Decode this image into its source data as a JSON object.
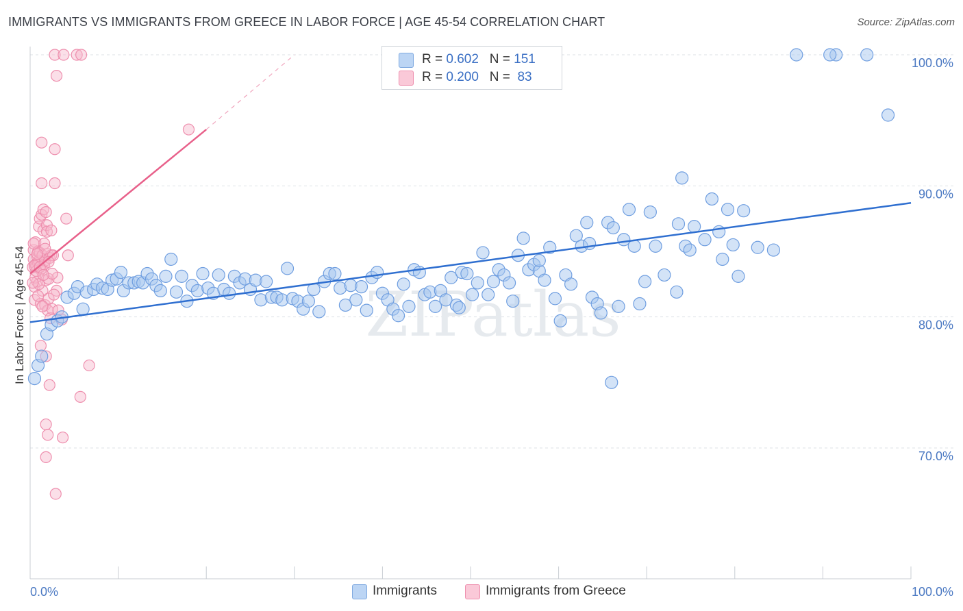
{
  "title": "IMMIGRANTS VS IMMIGRANTS FROM GREECE IN LABOR FORCE | AGE 45-54 CORRELATION CHART",
  "source": "Source: ZipAtlas.com",
  "watermark": "ZIPatlas",
  "legend": {
    "r_label": "R =",
    "n_label": "N =",
    "rows": [
      {
        "name": "Immigrants",
        "r": "0.602",
        "n": "151",
        "color": "#a8c8f0",
        "stroke": "#7fa9e0"
      },
      {
        "name": "Immigrants from Greece",
        "r": "0.200",
        "n": "83",
        "color": "#f7b8cc",
        "stroke": "#ee8fae"
      }
    ]
  },
  "bottom_legend": [
    "Immigrants",
    "Immigrants from Greece"
  ],
  "colors": {
    "blue_fill": "#a8c8f0",
    "blue_stroke": "#6f9ee0",
    "blue_line": "#2f6fd0",
    "pink_fill": "#f7b8cc",
    "pink_stroke": "#ee8fae",
    "pink_line": "#e8608a",
    "grid": "#dde1e6",
    "axis_text": "#4a78c2"
  },
  "chart_data": {
    "type": "scatter",
    "title": "IMMIGRANTS VS IMMIGRANTS FROM GREECE IN LABOR FORCE | AGE 45-54 CORRELATION CHART",
    "xlabel": "",
    "ylabel": "In Labor Force | Age 45-54",
    "xlim": [
      0,
      100
    ],
    "ylim": [
      60.5,
      101.5
    ],
    "x_tick_labels": [
      "0.0%",
      "100.0%"
    ],
    "y_ticks": [
      70,
      80,
      90,
      100
    ],
    "y_tick_labels": [
      "70.0%",
      "80.0%",
      "90.0%",
      "100.0%"
    ],
    "grid": true,
    "series": [
      {
        "name": "Immigrants",
        "trend": {
          "x": [
            0,
            100
          ],
          "y": [
            79.6,
            88.7
          ]
        },
        "points": [
          [
            0.5,
            75.3
          ],
          [
            0.9,
            76.3
          ],
          [
            1.3,
            77.0
          ],
          [
            1.9,
            78.7
          ],
          [
            2.4,
            79.4
          ],
          [
            3.1,
            79.7
          ],
          [
            3.6,
            80.0
          ],
          [
            4.2,
            81.5
          ],
          [
            5.0,
            81.8
          ],
          [
            5.4,
            82.3
          ],
          [
            6.0,
            80.6
          ],
          [
            6.4,
            81.9
          ],
          [
            7.2,
            82.1
          ],
          [
            7.6,
            82.5
          ],
          [
            8.2,
            82.2
          ],
          [
            8.8,
            82.1
          ],
          [
            9.3,
            82.8
          ],
          [
            9.8,
            82.9
          ],
          [
            10.3,
            83.4
          ],
          [
            10.6,
            82.0
          ],
          [
            11.2,
            82.6
          ],
          [
            11.8,
            82.6
          ],
          [
            12.3,
            82.7
          ],
          [
            12.8,
            82.6
          ],
          [
            13.3,
            83.3
          ],
          [
            13.8,
            82.9
          ],
          [
            14.3,
            82.4
          ],
          [
            14.8,
            82.0
          ],
          [
            15.4,
            83.1
          ],
          [
            16.0,
            84.4
          ],
          [
            16.6,
            81.9
          ],
          [
            17.2,
            83.1
          ],
          [
            17.8,
            81.2
          ],
          [
            18.4,
            82.4
          ],
          [
            19.0,
            82.0
          ],
          [
            19.6,
            83.3
          ],
          [
            20.2,
            82.2
          ],
          [
            20.8,
            81.8
          ],
          [
            21.4,
            83.2
          ],
          [
            22.0,
            82.1
          ],
          [
            22.6,
            81.8
          ],
          [
            23.2,
            83.1
          ],
          [
            23.8,
            82.6
          ],
          [
            24.4,
            82.9
          ],
          [
            25.0,
            82.1
          ],
          [
            25.6,
            82.8
          ],
          [
            26.2,
            81.3
          ],
          [
            26.8,
            82.7
          ],
          [
            27.4,
            81.5
          ],
          [
            28.0,
            81.5
          ],
          [
            28.6,
            81.3
          ],
          [
            29.2,
            83.7
          ],
          [
            29.8,
            81.4
          ],
          [
            30.4,
            81.2
          ],
          [
            31.0,
            80.6
          ],
          [
            31.6,
            81.2
          ],
          [
            32.2,
            82.1
          ],
          [
            32.8,
            80.4
          ],
          [
            33.4,
            82.7
          ],
          [
            34.0,
            83.3
          ],
          [
            34.6,
            83.3
          ],
          [
            35.2,
            82.2
          ],
          [
            35.8,
            80.9
          ],
          [
            36.4,
            82.4
          ],
          [
            37.0,
            81.3
          ],
          [
            37.6,
            82.3
          ],
          [
            38.2,
            80.5
          ],
          [
            38.8,
            83.0
          ],
          [
            39.4,
            83.4
          ],
          [
            40.0,
            81.8
          ],
          [
            40.6,
            81.3
          ],
          [
            41.2,
            80.6
          ],
          [
            41.8,
            80.1
          ],
          [
            42.4,
            82.5
          ],
          [
            43.0,
            80.8
          ],
          [
            43.6,
            83.6
          ],
          [
            44.2,
            83.4
          ],
          [
            44.8,
            81.7
          ],
          [
            45.4,
            81.9
          ],
          [
            46.0,
            80.8
          ],
          [
            46.6,
            82.0
          ],
          [
            47.2,
            81.3
          ],
          [
            47.8,
            83.0
          ],
          [
            48.4,
            80.9
          ],
          [
            49.0,
            83.4
          ],
          [
            49.6,
            83.3
          ],
          [
            50.2,
            81.7
          ],
          [
            50.8,
            82.6
          ],
          [
            51.4,
            84.9
          ],
          [
            52.0,
            81.7
          ],
          [
            52.6,
            82.7
          ],
          [
            53.2,
            83.6
          ],
          [
            53.8,
            83.2
          ],
          [
            54.4,
            82.6
          ],
          [
            54.8,
            81.2
          ],
          [
            55.4,
            84.7
          ],
          [
            56.0,
            86.0
          ],
          [
            56.6,
            83.6
          ],
          [
            57.2,
            84.0
          ],
          [
            57.8,
            83.5
          ],
          [
            58.4,
            82.8
          ],
          [
            59.0,
            85.3
          ],
          [
            59.6,
            81.4
          ],
          [
            60.2,
            79.7
          ],
          [
            60.8,
            83.2
          ],
          [
            61.4,
            82.5
          ],
          [
            62.0,
            86.2
          ],
          [
            62.6,
            85.4
          ],
          [
            63.2,
            87.2
          ],
          [
            63.8,
            81.5
          ],
          [
            64.4,
            81.0
          ],
          [
            64.8,
            80.3
          ],
          [
            65.6,
            87.2
          ],
          [
            66.2,
            86.8
          ],
          [
            66.8,
            80.8
          ],
          [
            67.4,
            85.9
          ],
          [
            68.0,
            88.2
          ],
          [
            68.6,
            85.4
          ],
          [
            69.2,
            81.0
          ],
          [
            69.8,
            82.7
          ],
          [
            70.4,
            88.0
          ],
          [
            71.0,
            85.4
          ],
          [
            72.0,
            83.2
          ],
          [
            73.4,
            81.9
          ],
          [
            74.0,
            90.6
          ],
          [
            74.4,
            85.4
          ],
          [
            74.9,
            85.1
          ],
          [
            75.4,
            86.9
          ],
          [
            76.6,
            85.9
          ],
          [
            77.4,
            89.0
          ],
          [
            78.2,
            86.5
          ],
          [
            78.6,
            84.4
          ],
          [
            79.2,
            88.2
          ],
          [
            79.8,
            85.5
          ],
          [
            80.4,
            83.1
          ],
          [
            81.0,
            88.1
          ],
          [
            82.6,
            85.3
          ],
          [
            87.0,
            100.0
          ],
          [
            91.5,
            100.0
          ],
          [
            95.0,
            100.0
          ],
          [
            63.5,
            85.6
          ],
          [
            73.6,
            87.1
          ],
          [
            84.4,
            85.1
          ],
          [
            90.8,
            100.0
          ],
          [
            66.0,
            75.0
          ],
          [
            97.4,
            95.4
          ],
          [
            48.7,
            80.7
          ],
          [
            57.8,
            84.3
          ]
        ]
      },
      {
        "name": "Immigrants from Greece",
        "trend": {
          "x": [
            0,
            20
          ],
          "y": [
            83.3,
            94.3
          ]
        },
        "trend_dashed": {
          "x": [
            20,
            30
          ],
          "y": [
            94.3,
            100.0
          ]
        },
        "points": [
          [
            0.3,
            83.8
          ],
          [
            0.4,
            84.4
          ],
          [
            0.4,
            85.1
          ],
          [
            0.5,
            82.3
          ],
          [
            0.5,
            81.3
          ],
          [
            0.6,
            84.0
          ],
          [
            0.6,
            85.7
          ],
          [
            0.7,
            83.9
          ],
          [
            0.8,
            84.6
          ],
          [
            0.8,
            82.7
          ],
          [
            0.9,
            84.1
          ],
          [
            0.9,
            85.0
          ],
          [
            1.0,
            84.3
          ],
          [
            1.0,
            86.9
          ],
          [
            1.1,
            87.5
          ],
          [
            1.1,
            84.9
          ],
          [
            1.2,
            83.6
          ],
          [
            1.2,
            81.0
          ],
          [
            1.3,
            83.7
          ],
          [
            1.3,
            87.8
          ],
          [
            1.4,
            84.7
          ],
          [
            1.4,
            82.0
          ],
          [
            1.5,
            88.2
          ],
          [
            1.5,
            86.6
          ],
          [
            1.6,
            84.0
          ],
          [
            1.6,
            85.6
          ],
          [
            1.7,
            80.9
          ],
          [
            1.7,
            84.3
          ],
          [
            1.8,
            88.0
          ],
          [
            1.8,
            82.8
          ],
          [
            1.9,
            87.0
          ],
          [
            1.9,
            86.5
          ],
          [
            2.0,
            84.8
          ],
          [
            2.0,
            80.5
          ],
          [
            2.1,
            81.4
          ],
          [
            2.1,
            82.9
          ],
          [
            2.2,
            84.5
          ],
          [
            2.3,
            79.9
          ],
          [
            2.4,
            86.6
          ],
          [
            2.4,
            84.7
          ],
          [
            2.5,
            80.6
          ],
          [
            2.6,
            84.7
          ],
          [
            3.0,
            82.0
          ],
          [
            3.1,
            83.0
          ],
          [
            3.2,
            80.5
          ],
          [
            3.6,
            79.8
          ],
          [
            4.1,
            87.5
          ],
          [
            4.3,
            84.7
          ],
          [
            1.3,
            93.3
          ],
          [
            2.8,
            92.8
          ],
          [
            1.3,
            90.2
          ],
          [
            2.8,
            90.2
          ],
          [
            3.0,
            98.4
          ],
          [
            2.8,
            100.0
          ],
          [
            3.8,
            100.0
          ],
          [
            5.3,
            100.0
          ],
          [
            5.8,
            100.0
          ],
          [
            18.0,
            94.3
          ],
          [
            1.2,
            77.8
          ],
          [
            1.8,
            77.0
          ],
          [
            2.2,
            74.8
          ],
          [
            5.7,
            73.9
          ],
          [
            6.7,
            76.3
          ],
          [
            1.8,
            71.8
          ],
          [
            2.0,
            71.0
          ],
          [
            3.7,
            70.8
          ],
          [
            1.8,
            69.3
          ],
          [
            2.9,
            66.5
          ],
          [
            0.6,
            83.0
          ],
          [
            0.9,
            81.6
          ],
          [
            1.4,
            80.8
          ],
          [
            2.7,
            81.7
          ],
          [
            0.4,
            85.6
          ],
          [
            0.7,
            83.5
          ],
          [
            1.0,
            82.5
          ],
          [
            2.5,
            83.3
          ],
          [
            0.5,
            83.9
          ],
          [
            1.7,
            85.2
          ],
          [
            0.8,
            84.8
          ],
          [
            1.1,
            83.8
          ],
          [
            0.3,
            82.6
          ],
          [
            2.1,
            84.2
          ],
          [
            1.5,
            83.2
          ]
        ]
      }
    ]
  }
}
